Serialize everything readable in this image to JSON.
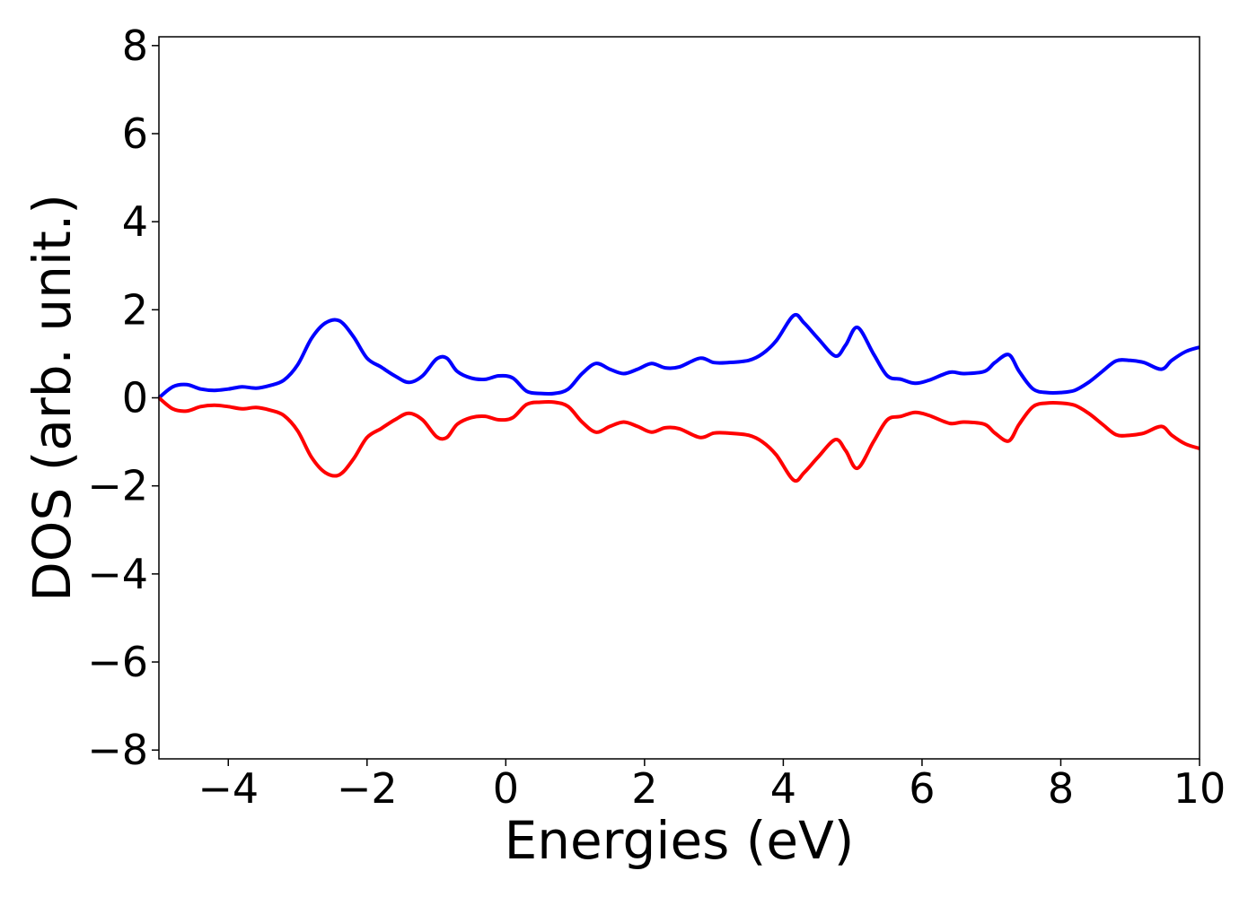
{
  "chart_data": {
    "type": "line",
    "title": "",
    "xlabel": "Energies (eV)",
    "ylabel": "DOS (arb. unit.)",
    "xlim": [
      -5,
      10
    ],
    "ylim": [
      -8.2,
      8.2
    ],
    "xticks": [
      -4,
      -2,
      0,
      2,
      4,
      6,
      8,
      10
    ],
    "xtick_labels": [
      "−4",
      "−2",
      "0",
      "2",
      "4",
      "6",
      "8",
      "10"
    ],
    "yticks": [
      8,
      6,
      4,
      2,
      0,
      -2,
      -4,
      -6,
      -8
    ],
    "ytick_labels": [
      "8",
      "6",
      "4",
      "2",
      "0",
      "−2",
      "−4",
      "−6",
      "−8"
    ],
    "grid": false,
    "legend": "none",
    "colors": {
      "up": "#0000ff",
      "down": "#ff0000"
    },
    "x": [
      -5.0,
      -4.8,
      -4.6,
      -4.4,
      -4.2,
      -4.0,
      -3.8,
      -3.6,
      -3.4,
      -3.2,
      -3.0,
      -2.8,
      -2.6,
      -2.4,
      -2.2,
      -2.0,
      -1.8,
      -1.6,
      -1.4,
      -1.2,
      -1.0,
      -0.85,
      -0.7,
      -0.5,
      -0.3,
      -0.1,
      0.1,
      0.3,
      0.5,
      0.7,
      0.9,
      1.1,
      1.3,
      1.5,
      1.7,
      1.9,
      2.1,
      2.3,
      2.5,
      2.8,
      3.0,
      3.2,
      3.5,
      3.7,
      3.9,
      4.15,
      4.3,
      4.5,
      4.75,
      4.9,
      5.07,
      5.3,
      5.5,
      5.7,
      5.9,
      6.1,
      6.4,
      6.6,
      6.9,
      7.05,
      7.25,
      7.4,
      7.6,
      7.8,
      8.0,
      8.2,
      8.4,
      8.6,
      8.8,
      9.0,
      9.2,
      9.45,
      9.6,
      9.8,
      10.0
    ],
    "series": [
      {
        "values": [
          0.0,
          0.25,
          0.3,
          0.2,
          0.17,
          0.2,
          0.25,
          0.22,
          0.28,
          0.4,
          0.75,
          1.35,
          1.7,
          1.75,
          1.4,
          0.9,
          0.7,
          0.5,
          0.35,
          0.5,
          0.88,
          0.9,
          0.6,
          0.45,
          0.42,
          0.5,
          0.45,
          0.15,
          0.1,
          0.1,
          0.2,
          0.55,
          0.78,
          0.65,
          0.55,
          0.65,
          0.78,
          0.68,
          0.7,
          0.9,
          0.8,
          0.8,
          0.85,
          1.0,
          1.3,
          1.87,
          1.7,
          1.35,
          0.95,
          1.2,
          1.6,
          1.0,
          0.5,
          0.42,
          0.33,
          0.4,
          0.58,
          0.55,
          0.6,
          0.8,
          0.98,
          0.6,
          0.2,
          0.12,
          0.12,
          0.17,
          0.35,
          0.6,
          0.84,
          0.85,
          0.8,
          0.65,
          0.85,
          1.05,
          1.15
        ]
      },
      {
        "values": [
          0.0,
          -0.25,
          -0.3,
          -0.2,
          -0.17,
          -0.2,
          -0.25,
          -0.22,
          -0.28,
          -0.4,
          -0.75,
          -1.35,
          -1.7,
          -1.75,
          -1.4,
          -0.9,
          -0.7,
          -0.5,
          -0.35,
          -0.5,
          -0.88,
          -0.9,
          -0.6,
          -0.45,
          -0.42,
          -0.5,
          -0.45,
          -0.15,
          -0.1,
          -0.1,
          -0.2,
          -0.55,
          -0.78,
          -0.65,
          -0.55,
          -0.65,
          -0.78,
          -0.68,
          -0.7,
          -0.9,
          -0.8,
          -0.8,
          -0.85,
          -1.0,
          -1.3,
          -1.87,
          -1.7,
          -1.35,
          -0.95,
          -1.2,
          -1.6,
          -1.0,
          -0.5,
          -0.42,
          -0.33,
          -0.4,
          -0.58,
          -0.55,
          -0.6,
          -0.8,
          -0.98,
          -0.6,
          -0.2,
          -0.12,
          -0.12,
          -0.17,
          -0.35,
          -0.6,
          -0.84,
          -0.85,
          -0.8,
          -0.65,
          -0.85,
          -1.05,
          -1.15
        ]
      }
    ]
  }
}
